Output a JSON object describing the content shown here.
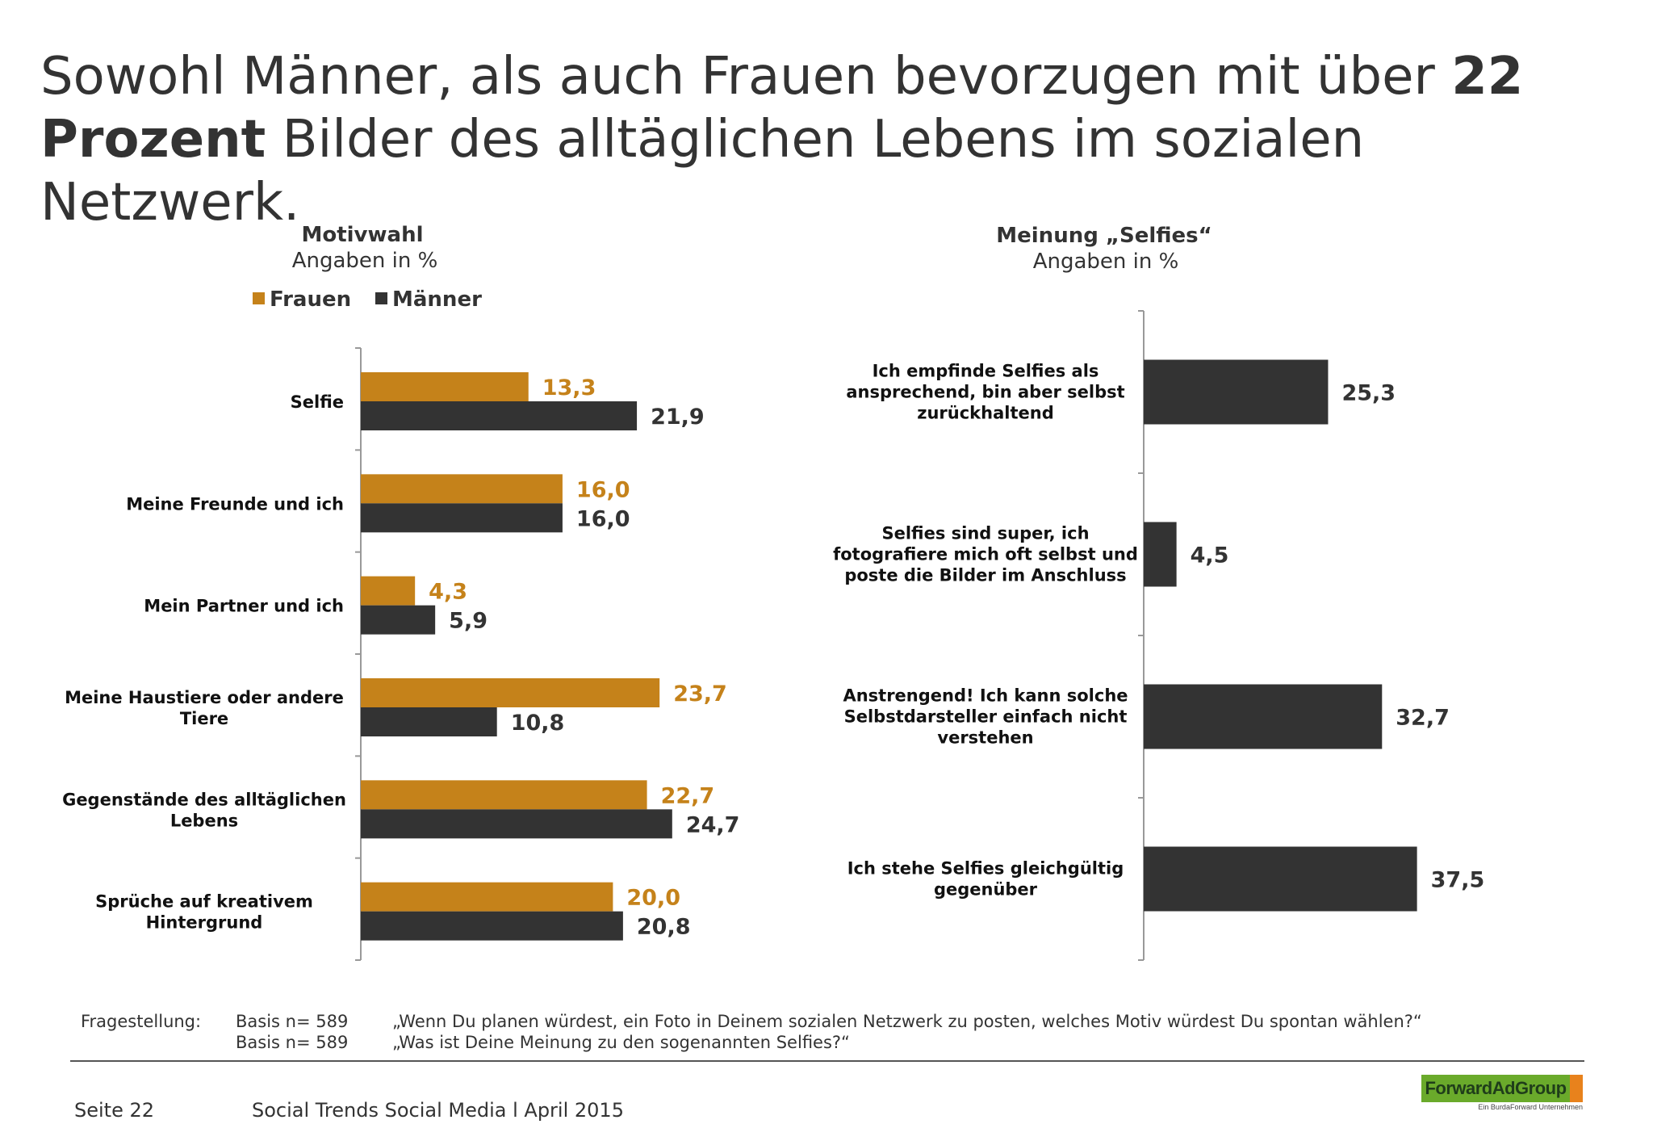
{
  "headline": {
    "part1": "Sowohl Männer, als auch Frauen bevorzugen mit über ",
    "bold1": "22",
    "bold2": "Prozent",
    "part2": " Bilder des alltäglichen Lebens im sozialen Netzwerk."
  },
  "chart_data": [
    {
      "type": "bar",
      "orientation": "horizontal",
      "title": "Motivwahl",
      "subtitle": "Angaben in %",
      "legend_position": "top",
      "categories": [
        "Selfie",
        "Meine Freunde und ich",
        "Mein Partner und ich",
        "Meine Haustiere oder andere Tiere",
        "Gegenstände des alltäglichen Lebens",
        "Sprüche auf kreativem Hintergrund"
      ],
      "category_lines": [
        [
          "Selfie"
        ],
        [
          "Meine Freunde und ich"
        ],
        [
          "Mein Partner und ich"
        ],
        [
          "Meine Haustiere oder andere",
          "Tiere"
        ],
        [
          "Gegenstände des alltäglichen",
          "Lebens"
        ],
        [
          "Sprüche auf kreativem",
          "Hintergrund"
        ]
      ],
      "series": [
        {
          "name": "Frauen",
          "color": "#c5821a",
          "values": [
            13.3,
            16.0,
            4.3,
            23.7,
            22.7,
            20.0
          ],
          "labels": [
            "13,3",
            "16,0",
            "4,3",
            "23,7",
            "22,7",
            "20,0"
          ]
        },
        {
          "name": "Männer",
          "color": "#333333",
          "values": [
            21.9,
            16.0,
            5.9,
            10.8,
            24.7,
            20.8
          ],
          "labels": [
            "21,9",
            "16,0",
            "5,9",
            "10,8",
            "24,7",
            "20,8"
          ]
        }
      ],
      "xlim": [
        0,
        50
      ],
      "grid": false
    },
    {
      "type": "bar",
      "orientation": "horizontal",
      "title": "Meinung „Selfies“",
      "subtitle": "Angaben in %",
      "categories": [
        "Ich empfinde Selfies als ansprechend, bin aber selbst zurückhaltend",
        "Selfies sind super, ich fotografiere mich oft selbst und poste die Bilder im Anschluss",
        "Anstrengend! Ich kann solche Selbstdarsteller einfach nicht verstehen",
        "Ich stehe Selfies gleichgültig gegenüber"
      ],
      "category_lines": [
        [
          "Ich empfinde Selfies als",
          "ansprechend, bin aber selbst",
          "zurückhaltend"
        ],
        [
          "Selfies sind super, ich",
          "fotografiere mich oft selbst und",
          "poste die Bilder im Anschluss"
        ],
        [
          "Anstrengend! Ich kann solche",
          "Selbstdarsteller einfach nicht",
          "verstehen"
        ],
        [
          "Ich stehe Selfies gleichgültig",
          "gegenüber"
        ]
      ],
      "series": [
        {
          "color": "#333333",
          "values": [
            25.3,
            4.5,
            32.7,
            37.5
          ],
          "labels": [
            "25,3",
            "4,5",
            "32,7",
            "37,5"
          ]
        }
      ],
      "xlim": [
        0,
        60
      ],
      "grid": false
    }
  ],
  "footer": {
    "label": "Fragestellung:",
    "rows": [
      {
        "basis": "Basis n= 589",
        "question": "„Wenn Du planen würdest, ein Foto in Deinem sozialen Netzwerk zu posten, welches Motiv würdest Du spontan wählen?“"
      },
      {
        "basis": "Basis n= 589",
        "question": "„Was ist Deine Meinung zu den sogenannten Selfies?“"
      }
    ],
    "page": "Seite 22",
    "report": "Social Trends Social Media l April 2015",
    "logo_text": "ForwardAdGroup",
    "logo_sub": "Ein BurdaForward Unternehmen",
    "logo_colors": [
      "#6aaa2b",
      "#e8821c"
    ]
  }
}
